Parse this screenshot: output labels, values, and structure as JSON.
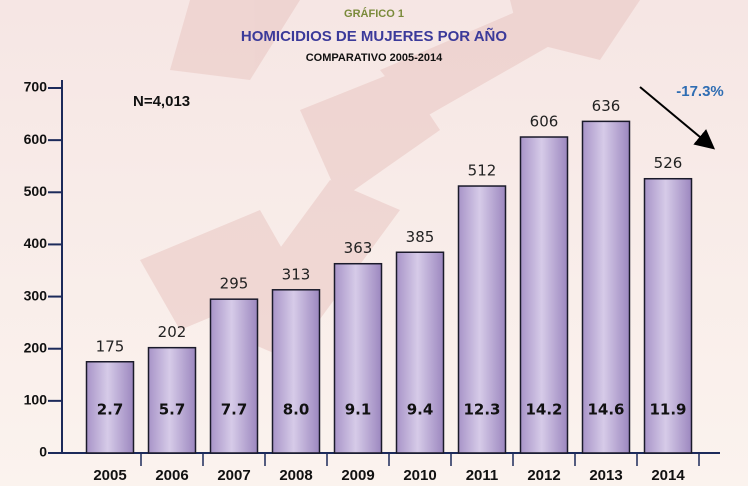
{
  "chart_data": {
    "type": "bar",
    "kicker": "GRÁFICO 1",
    "title": "HOMICIDIOS DE MUJERES POR AÑO",
    "subtitle": "COMPARATIVO 2005-2014",
    "annotations": [
      "N=4,013",
      "-17.3%"
    ],
    "categories": [
      "2005",
      "2006",
      "2007",
      "2008",
      "2009",
      "2010",
      "2011",
      "2012",
      "2013",
      "2014"
    ],
    "values": [
      175,
      202,
      295,
      313,
      363,
      385,
      512,
      606,
      636,
      526
    ],
    "rates": {
      "values": [
        2.7,
        5.7,
        7.7,
        8.0,
        9.1,
        9.4,
        12.3,
        14.2,
        14.6,
        11.9
      ],
      "value_labels": [
        "2.7",
        "5.7",
        "7.7",
        "8.0",
        "9.1",
        "9.4",
        "12.3",
        "14.2",
        "14.6",
        "11.9"
      ]
    },
    "color": "#b9a8d4",
    "ylim": [
      0,
      700
    ],
    "yticks": [
      0,
      100,
      200,
      300,
      400,
      500,
      600,
      700
    ],
    "grid": false
  }
}
